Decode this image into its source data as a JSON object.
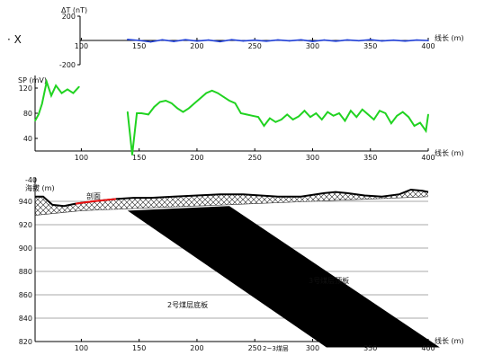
{
  "chart_data": [
    {
      "type": "line",
      "ylabel": "ΔT (nT)",
      "xlabel": "线长 (m)",
      "xlim": [
        60,
        400
      ],
      "ylim": [
        -200,
        200
      ],
      "yticks": [
        "200",
        "-200"
      ],
      "xticks": [
        "100",
        "150",
        "200",
        "250",
        "300",
        "350",
        "400"
      ],
      "series": [
        {
          "color": "#1f3fd6",
          "x": [
            140,
            150,
            160,
            170,
            180,
            190,
            200,
            210,
            220,
            230,
            240,
            250,
            260,
            270,
            280,
            290,
            300,
            310,
            320,
            330,
            340,
            350,
            360,
            370,
            380,
            390,
            400
          ],
          "y": [
            8,
            0,
            -12,
            5,
            -8,
            6,
            -5,
            3,
            -10,
            6,
            -4,
            2,
            -6,
            4,
            -3,
            5,
            -8,
            3,
            -6,
            4,
            -2,
            6,
            -4,
            2,
            -5,
            3,
            -1
          ]
        }
      ]
    },
    {
      "type": "line",
      "ylabel": "SP (mV)",
      "xlabel": "线长 (m)",
      "xlim": [
        60,
        400
      ],
      "ylim": [
        20,
        140
      ],
      "yticks": [
        "120",
        "80",
        "40"
      ],
      "xticks": [
        "100",
        "150",
        "200",
        "250",
        "300",
        "350",
        "400"
      ],
      "series": [
        {
          "color": "#21d321",
          "segments": [
            {
              "x": [
                60,
                63,
                66,
                70,
                74,
                78,
                83,
                88,
                93,
                98
              ],
              "y": [
                68,
                78,
                95,
                130,
                108,
                124,
                112,
                118,
                112,
                122
              ]
            },
            {
              "x": [
                140,
                144,
                148,
                152,
                158,
                163,
                168,
                173,
                178,
                183,
                188,
                193,
                198,
                203,
                208,
                213,
                218,
                223,
                228,
                233,
                238,
                243,
                248,
                253,
                258,
                263,
                268,
                273,
                278,
                283,
                288,
                293,
                298,
                303,
                308,
                313,
                318,
                323,
                328,
                333,
                338,
                343,
                348,
                353,
                358,
                363,
                368,
                373,
                378,
                383,
                388,
                393,
                398,
                400
              ],
              "y": [
                82,
                14,
                80,
                80,
                78,
                90,
                98,
                100,
                96,
                88,
                82,
                88,
                96,
                104,
                112,
                116,
                112,
                106,
                100,
                96,
                80,
                78,
                76,
                74,
                60,
                72,
                66,
                70,
                78,
                70,
                75,
                84,
                74,
                80,
                70,
                82,
                76,
                80,
                68,
                84,
                74,
                86,
                78,
                70,
                84,
                80,
                64,
                76,
                82,
                74,
                60,
                65,
                52,
                78
              ]
            }
          ]
        }
      ]
    },
    {
      "type": "area",
      "ylabel": "海拔 (m)",
      "xlabel": "线长 (m)",
      "xlim": [
        60,
        400
      ],
      "ylim": [
        820,
        948
      ],
      "yticks": [
        "940",
        "920",
        "900",
        "880",
        "860",
        "840",
        "820"
      ],
      "xticks": [
        "100",
        "150",
        "200",
        "250",
        "300",
        "350",
        "400"
      ],
      "surface": {
        "x": [
          60,
          67,
          75,
          85,
          95,
          110,
          130,
          145,
          160,
          180,
          200,
          220,
          240,
          255,
          270,
          290,
          310,
          320,
          330,
          345,
          360,
          375,
          385,
          395,
          400
        ],
        "y": [
          944,
          944,
          937,
          936,
          938,
          940,
          942,
          943,
          943,
          944,
          945,
          946,
          946,
          945,
          944,
          944,
          947,
          948,
          947,
          945,
          944,
          946,
          950,
          949,
          948
        ]
      },
      "cover_bottom": {
        "x": [
          60,
          100,
          150,
          200,
          250,
          300,
          350,
          400
        ],
        "y": [
          928,
          932,
          934,
          936,
          938,
          940,
          942,
          944
        ]
      },
      "red_segment_x": [
        95,
        135
      ],
      "seam_2_3": {
        "color": "#000000",
        "polygon": [
          [
            140,
            932
          ],
          [
            228,
            936
          ],
          [
            410,
            815
          ],
          [
            312,
            815
          ]
        ]
      },
      "annotations": {
        "red_label": "剖面",
        "seam_2_label": "2号煤层底板",
        "seam_3_label": "3号煤层顶板",
        "bottom_label": "2~3煤层"
      }
    }
  ],
  "side_mark": "· X",
  "bottom_y_label": "-40"
}
